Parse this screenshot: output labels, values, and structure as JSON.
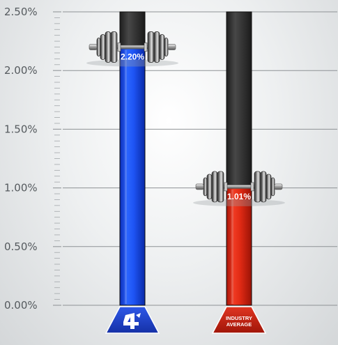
{
  "chart_data": {
    "type": "bar",
    "categories": [
      "4",
      "INDUSTRY AVERAGE"
    ],
    "values": [
      2.2,
      1.01
    ],
    "value_labels": [
      "2.20%",
      "1.01%"
    ],
    "ylim": [
      0,
      2.5
    ],
    "yticks": [
      {
        "value": 2.5,
        "label": "2.50%"
      },
      {
        "value": 2.0,
        "label": "2.00%"
      },
      {
        "value": 1.5,
        "label": "1.50%"
      },
      {
        "value": 1.0,
        "label": "1.00%"
      },
      {
        "value": 0.5,
        "label": "0.50%"
      },
      {
        "value": 0.0,
        "label": "0.00%"
      }
    ],
    "grid": true,
    "bar_colors": [
      "#1c4ff0",
      "#dc2a1a"
    ],
    "badges": [
      {
        "icon": "company-4-logo",
        "color": "#1f3cc8",
        "text": ""
      },
      {
        "icon": "none",
        "color": "#c42216",
        "text_lines": [
          "INDUSTRY",
          "AVERAGE"
        ]
      }
    ]
  }
}
